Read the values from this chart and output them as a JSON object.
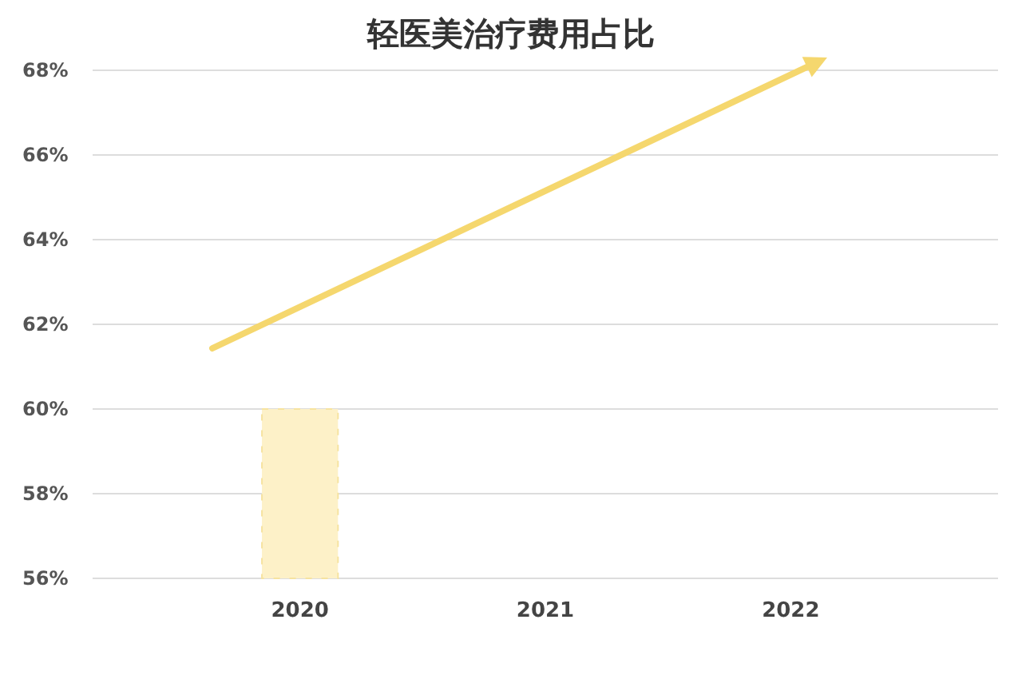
{
  "chart_data": {
    "type": "bar",
    "title": "轻医美治疗费用占比",
    "categories": [
      "2020",
      "2021",
      "2022"
    ],
    "values": [
      60,
      null,
      null
    ],
    "color": "#fdf1c8",
    "ylim": [
      56,
      68
    ],
    "yticks": [
      {
        "value": 56,
        "label": "56%"
      },
      {
        "value": 58,
        "label": "58%"
      },
      {
        "value": 60,
        "label": "60%"
      },
      {
        "value": 62,
        "label": "62%"
      },
      {
        "value": 64,
        "label": "64%"
      },
      {
        "value": 66,
        "label": "66%"
      },
      {
        "value": 68,
        "label": "68%"
      }
    ],
    "grid": "y"
  }
}
